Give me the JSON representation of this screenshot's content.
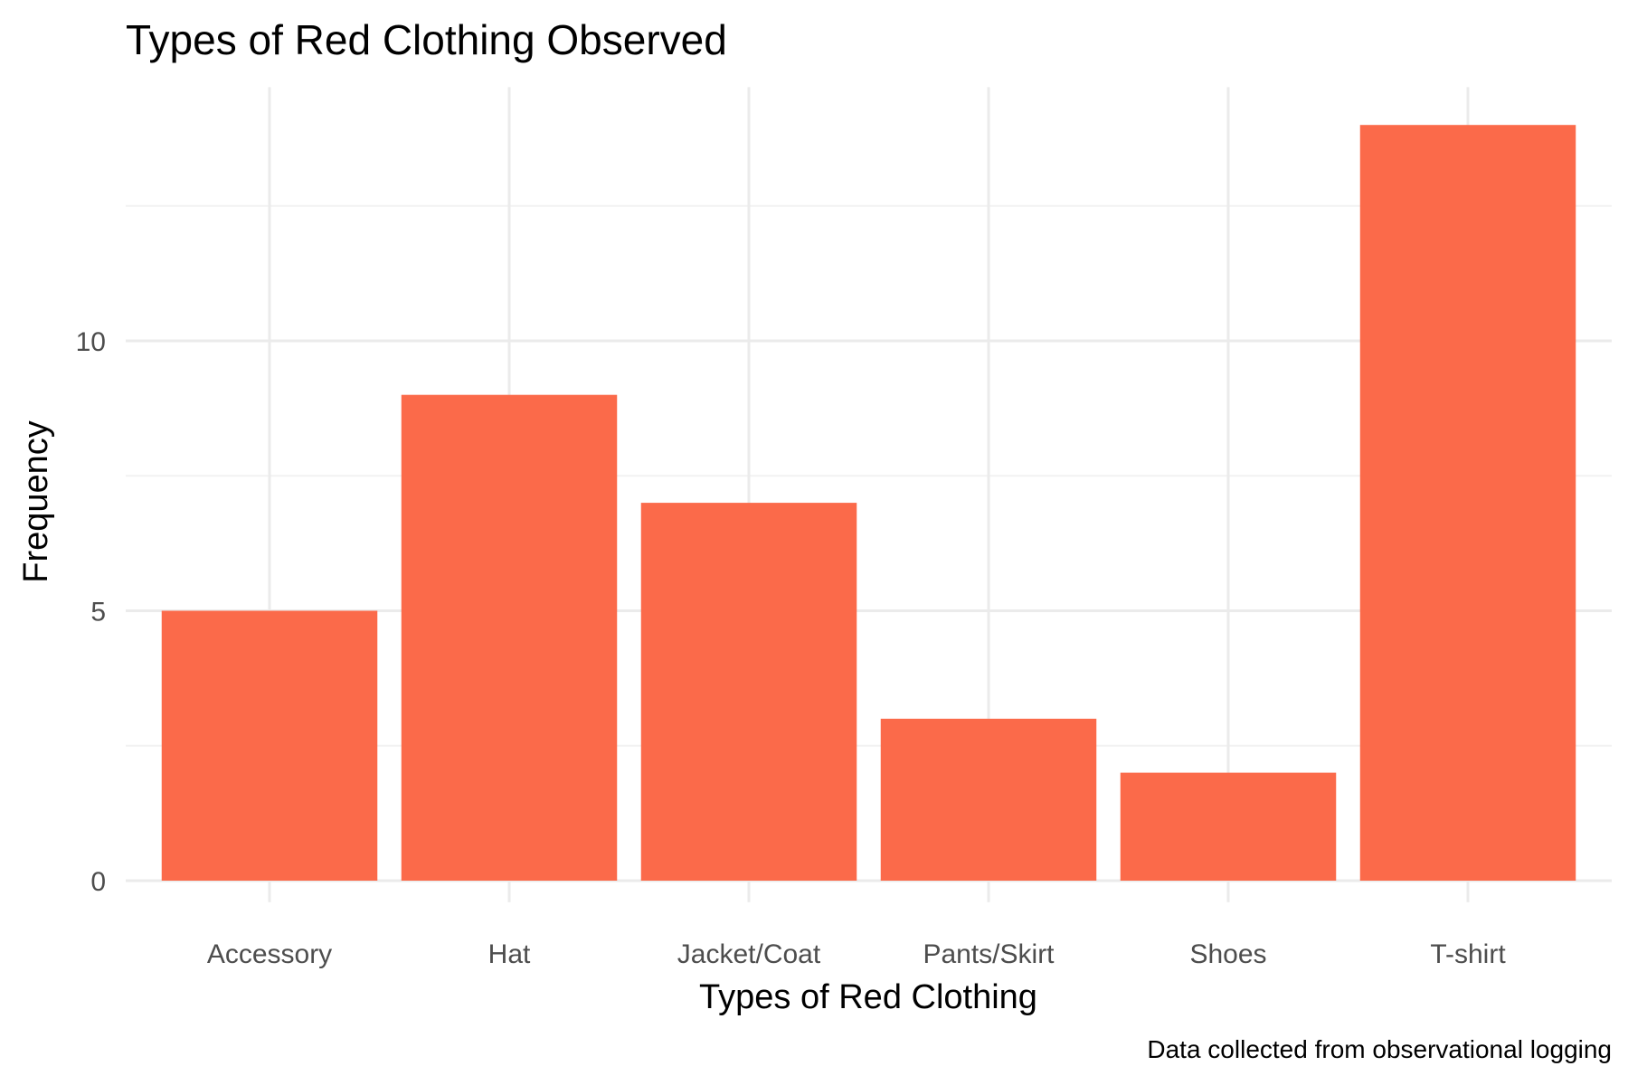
{
  "chart_data": {
    "type": "bar",
    "title": "Types of Red Clothing Observed",
    "xlabel": "Types of Red Clothing",
    "ylabel": "Frequency",
    "caption": "Data collected from observational logging",
    "categories": [
      "Accessory",
      "Hat",
      "Jacket/Coat",
      "Pants/Skirt",
      "Shoes",
      "T-shirt"
    ],
    "values": [
      5,
      9,
      7,
      3,
      2,
      14
    ],
    "ylim": [
      0,
      14.7
    ],
    "y_ticks": [
      0,
      5,
      10
    ],
    "y_tick_labels": [
      "0",
      "5",
      "10"
    ],
    "grid": true,
    "bar_color": "#fb6a4a"
  }
}
